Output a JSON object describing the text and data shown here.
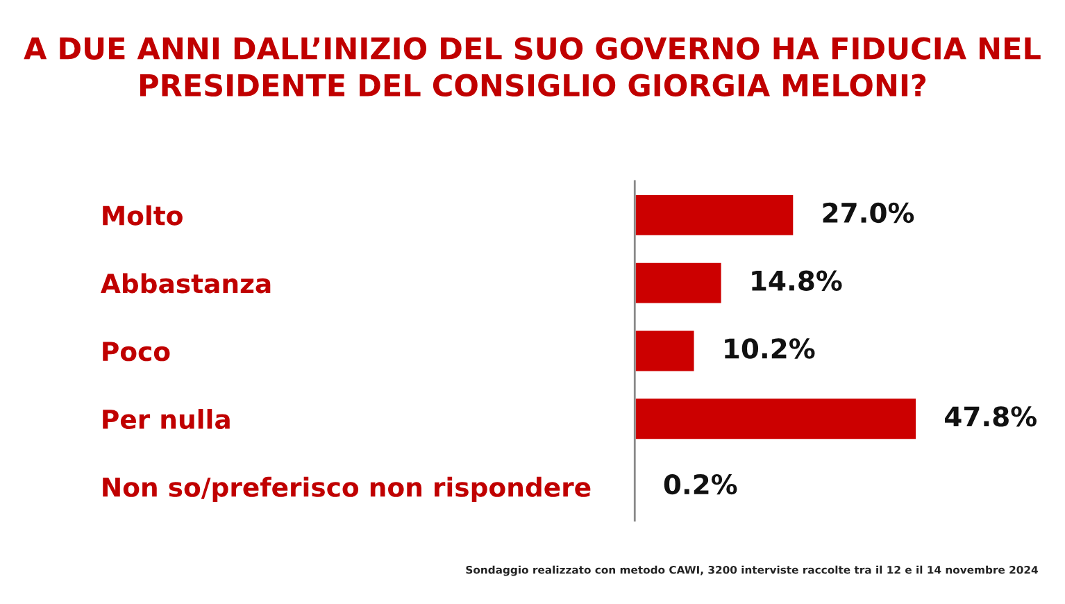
{
  "chart_data": {
    "type": "bar",
    "orientation": "horizontal",
    "title": "A DUE ANNI DALL’INIZIO DEL SUO GOVERNO HA FIDUCIA NEL\nPRESIDENTE DEL CONSIGLIO GIORGIA MELONI?",
    "categories": [
      "Molto",
      "Abbastanza",
      "Poco",
      "Per nulla",
      "Non so/preferisco non rispondere"
    ],
    "values": [
      27.0,
      14.8,
      10.2,
      47.8,
      0.2
    ],
    "value_labels": [
      "27.0%",
      "14.8%",
      "10.2%",
      "47.8%",
      "0.2%"
    ],
    "color": "#cc0000",
    "tick_labels": "y",
    "grid": false,
    "legend": false,
    "annotations": [
      "Sondaggio realizzato con metodo CAWI, 3200 interviste raccolte tra il 12 e il 14 novembre 2024"
    ]
  }
}
